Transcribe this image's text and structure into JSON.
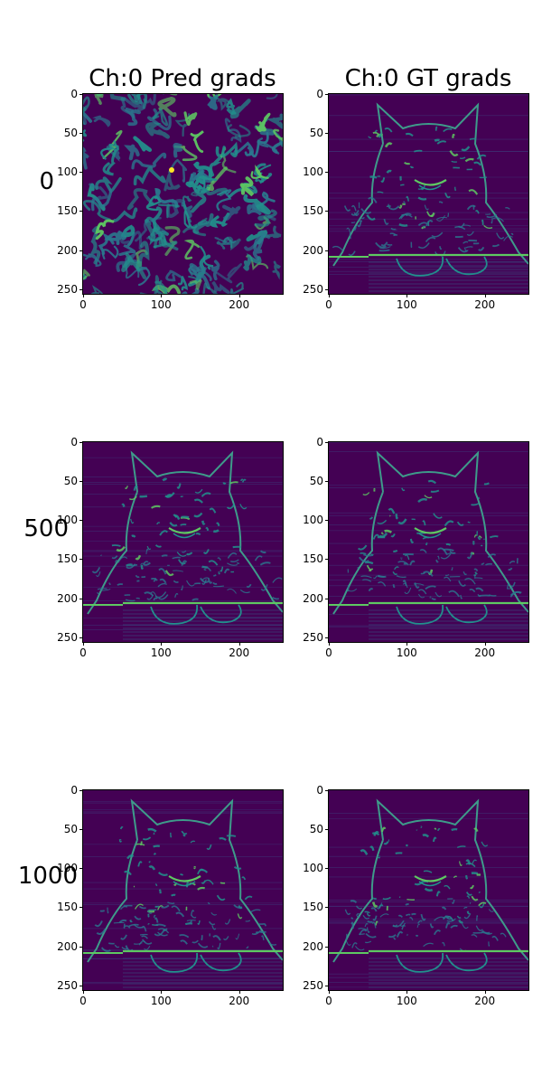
{
  "chart_data": {
    "type": "heatmap",
    "colormap": "viridis",
    "columns": [
      "Ch:0 Pred grads",
      "Ch:0 GT grads"
    ],
    "rows": [
      "0",
      "500",
      "1000"
    ],
    "xlim": [
      0,
      256
    ],
    "ylim": [
      256,
      0
    ],
    "xticks": [
      "0",
      "100",
      "200"
    ],
    "yticks": [
      "0",
      "50",
      "100",
      "150",
      "200",
      "250"
    ],
    "grid": false,
    "panels": [
      {
        "row": "0",
        "column": "Ch:0 Pred grads",
        "content": "noise"
      },
      {
        "row": "0",
        "column": "Ch:0 GT grads",
        "content": "cat-edges"
      },
      {
        "row": "500",
        "column": "Ch:0 Pred grads",
        "content": "cat-edges"
      },
      {
        "row": "500",
        "column": "Ch:0 GT grads",
        "content": "cat-edges"
      },
      {
        "row": "1000",
        "column": "Ch:0 Pred grads",
        "content": "cat-edges"
      },
      {
        "row": "1000",
        "column": "Ch:0 GT grads",
        "content": "cat-edges"
      }
    ]
  },
  "colors": {
    "background": "#440154",
    "mid": "#21918c",
    "high": "#5ec962",
    "peak": "#fde725"
  }
}
